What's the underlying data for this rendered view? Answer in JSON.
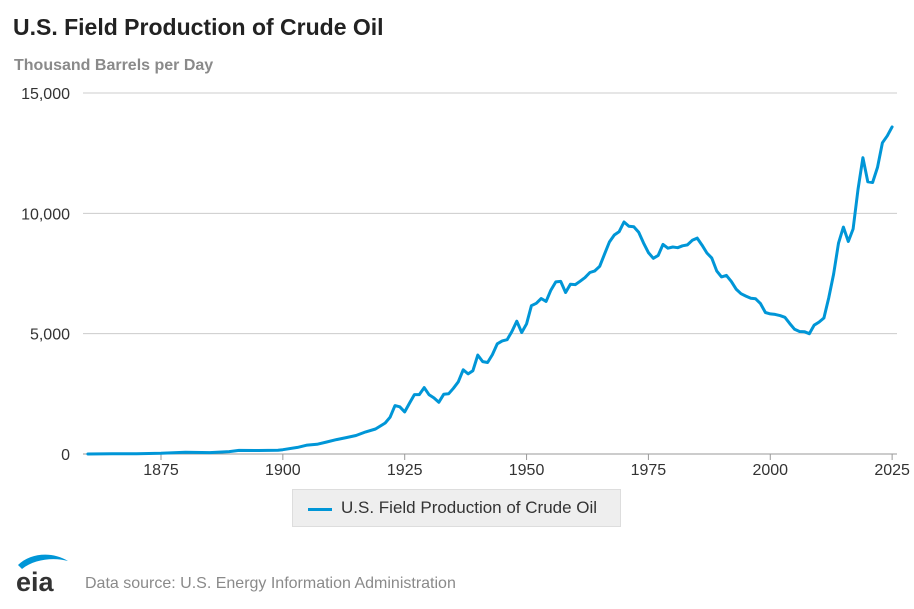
{
  "logo_text": "eia",
  "source_note": "Data source: U.S. Energy Information Administration",
  "colors": {
    "series": "#0096d7",
    "grid": "#cccccc",
    "text": "#333333",
    "muted": "#8a8a8a"
  },
  "chart_data": {
    "type": "line",
    "title": "U.S. Field Production of Crude Oil",
    "subtitle": "Thousand Barrels per Day",
    "xlabel": "",
    "ylabel": "",
    "xlim": [
      1859,
      2026
    ],
    "ylim": [
      0,
      15000
    ],
    "x_ticks": [
      1875,
      1900,
      1925,
      1950,
      1975,
      2000,
      2025
    ],
    "y_ticks": [
      0,
      5000,
      10000,
      15000
    ],
    "y_tick_labels": [
      "0",
      "5,000",
      "10,000",
      "15,000"
    ],
    "grid": true,
    "legend": "bottom-center",
    "series": [
      {
        "name": "U.S. Field Production of Crude Oil",
        "x": [
          1860,
          1865,
          1870,
          1875,
          1880,
          1885,
          1889,
          1891,
          1895,
          1899,
          1900,
          1903,
          1905,
          1907,
          1909,
          1911,
          1913,
          1915,
          1917,
          1919,
          1921,
          1922,
          1923,
          1924,
          1925,
          1926,
          1927,
          1928,
          1929,
          1930,
          1931,
          1932,
          1933,
          1934,
          1935,
          1936,
          1937,
          1938,
          1939,
          1940,
          1941,
          1942,
          1943,
          1944,
          1945,
          1946,
          1947,
          1948,
          1949,
          1950,
          1951,
          1952,
          1953,
          1954,
          1955,
          1956,
          1957,
          1958,
          1959,
          1960,
          1961,
          1962,
          1963,
          1964,
          1965,
          1966,
          1967,
          1968,
          1969,
          1970,
          1971,
          1972,
          1973,
          1974,
          1975,
          1976,
          1977,
          1978,
          1979,
          1980,
          1981,
          1982,
          1983,
          1984,
          1985,
          1986,
          1987,
          1988,
          1989,
          1990,
          1991,
          1992,
          1993,
          1994,
          1995,
          1996,
          1997,
          1998,
          1999,
          2000,
          2001,
          2002,
          2003,
          2004,
          2005,
          2006,
          2007,
          2008,
          2009,
          2010,
          2011,
          2012,
          2013,
          2014,
          2015,
          2016,
          2017,
          2018,
          2019,
          2020,
          2021,
          2022,
          2023,
          2024,
          2025
        ],
        "values": [
          1,
          7,
          14,
          30,
          72,
          60,
          100,
          150,
          145,
          155,
          180,
          275,
          370,
          405,
          500,
          600,
          680,
          770,
          920,
          1040,
          1290,
          1530,
          2010,
          1960,
          1750,
          2120,
          2470,
          2470,
          2760,
          2460,
          2330,
          2150,
          2480,
          2500,
          2730,
          3000,
          3500,
          3330,
          3460,
          4110,
          3840,
          3800,
          4130,
          4580,
          4700,
          4750,
          5090,
          5520,
          5050,
          5410,
          6160,
          6260,
          6460,
          6340,
          6810,
          7150,
          7170,
          6710,
          7050,
          7040,
          7180,
          7330,
          7540,
          7610,
          7800,
          8300,
          8810,
          9100,
          9240,
          9640,
          9460,
          9440,
          9210,
          8770,
          8370,
          8130,
          8250,
          8710,
          8550,
          8600,
          8570,
          8650,
          8690,
          8880,
          8970,
          8680,
          8350,
          8140,
          7610,
          7360,
          7420,
          7170,
          6850,
          6660,
          6560,
          6470,
          6450,
          6250,
          5880,
          5820,
          5800,
          5750,
          5680,
          5420,
          5180,
          5090,
          5080,
          5000,
          5350,
          5480,
          5650,
          6500,
          7470,
          8760,
          9430,
          8830,
          9350,
          10990,
          12310,
          11310,
          11280,
          11910,
          12930,
          13220,
          13590
        ]
      }
    ]
  }
}
